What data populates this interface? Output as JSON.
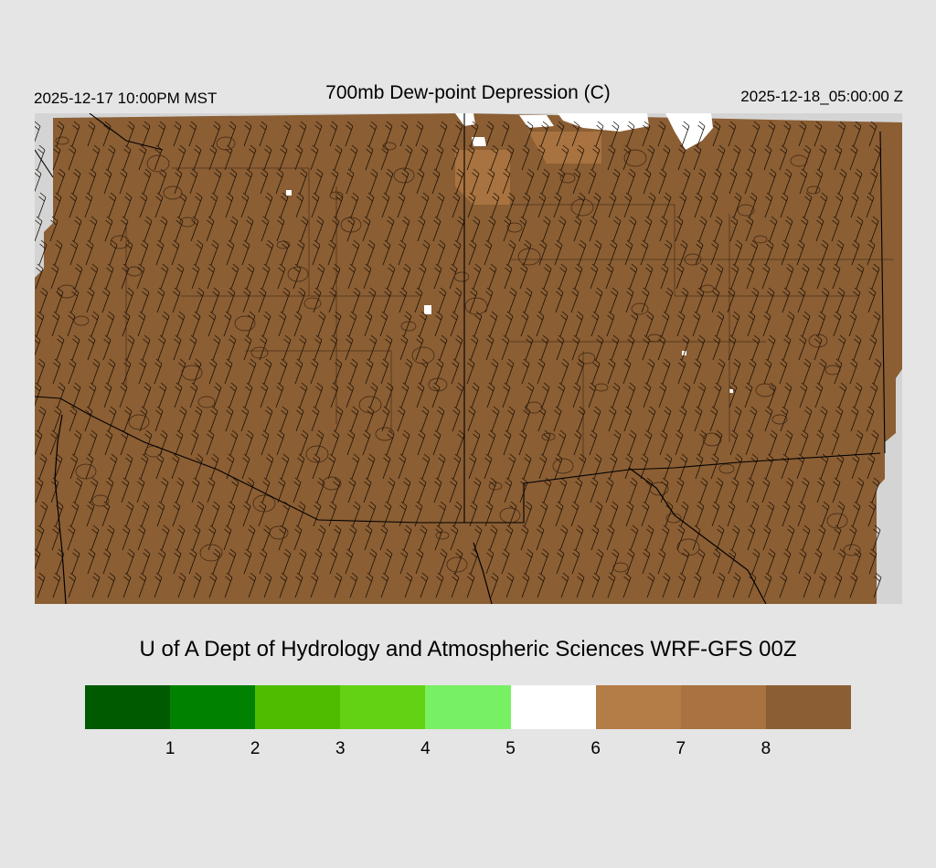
{
  "header": {
    "local_time": "2025-12-17 10:00PM MST",
    "title": "700mb Dew-point Depression (C)",
    "valid_time": "2025-12-18_05:00:00 Z"
  },
  "map": {
    "fill_color": "#8b5e34",
    "missing_color": "#d4d4d4",
    "moist_patch_color": "#ffffff",
    "transition_color": "#b07a44"
  },
  "credit": "U of A Dept of Hydrology and Atmospheric Sciences WRF-GFS 00Z",
  "legend": {
    "colors": [
      "#005a00",
      "#008200",
      "#50bc00",
      "#64d214",
      "#78f064",
      "#ffffff",
      "#b47c46",
      "#a87340",
      "#8b5e34"
    ],
    "tick_labels": [
      "1",
      "2",
      "3",
      "4",
      "5",
      "6",
      "7",
      "8"
    ]
  }
}
